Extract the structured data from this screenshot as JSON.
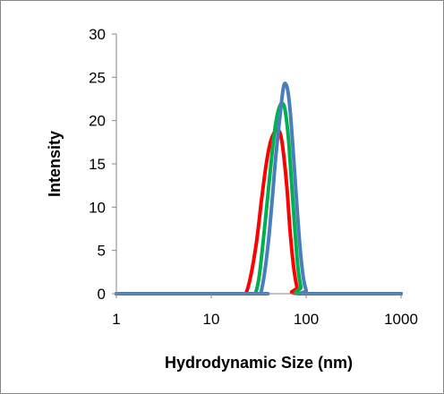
{
  "chart_data": {
    "type": "line",
    "title": "",
    "xlabel": "Hydrodynamic Size (nm)",
    "ylabel": "Intensity",
    "xscale": "log",
    "xlim": [
      1,
      1000
    ],
    "ylim": [
      0,
      30
    ],
    "xticks": [
      1,
      10,
      100,
      1000
    ],
    "xtick_labels": [
      "1",
      "10",
      "100",
      "1000"
    ],
    "yticks": [
      0,
      5,
      10,
      15,
      20,
      25,
      30
    ],
    "ytick_labels": [
      "0",
      "5",
      "10",
      "15",
      "20",
      "25",
      "30"
    ],
    "grid": false,
    "legend": "none",
    "series": [
      {
        "color": "#ff0000",
        "points": [
          [
            1,
            0
          ],
          [
            20,
            0
          ],
          [
            23,
            0
          ],
          [
            26,
            2
          ],
          [
            30,
            6
          ],
          [
            34,
            11
          ],
          [
            38,
            15
          ],
          [
            42,
            17.5
          ],
          [
            46,
            18.6
          ],
          [
            50,
            19
          ],
          [
            54,
            18.3
          ],
          [
            58,
            16
          ],
          [
            63,
            12
          ],
          [
            68,
            7
          ],
          [
            74,
            3
          ],
          [
            80,
            0.8
          ],
          [
            86,
            0
          ],
          [
            1000,
            0
          ]
        ]
      },
      {
        "color": "#00b050",
        "points": [
          [
            1,
            0
          ],
          [
            26,
            0
          ],
          [
            29,
            0
          ],
          [
            32,
            2
          ],
          [
            36,
            7
          ],
          [
            40,
            12
          ],
          [
            44,
            16.5
          ],
          [
            48,
            19.8
          ],
          [
            52,
            21.5
          ],
          [
            56,
            22
          ],
          [
            60,
            21.2
          ],
          [
            65,
            18
          ],
          [
            70,
            13
          ],
          [
            76,
            7.5
          ],
          [
            82,
            3
          ],
          [
            88,
            0.8
          ],
          [
            94,
            0
          ],
          [
            1000,
            0
          ]
        ]
      },
      {
        "color": "#4a7ebb",
        "points": [
          [
            1,
            0
          ],
          [
            30,
            0
          ],
          [
            33,
            0
          ],
          [
            36,
            2
          ],
          [
            40,
            6
          ],
          [
            44,
            11
          ],
          [
            48,
            16
          ],
          [
            53,
            20.5
          ],
          [
            57,
            23.5
          ],
          [
            60,
            24.3
          ],
          [
            64,
            23.5
          ],
          [
            68,
            21
          ],
          [
            73,
            16.5
          ],
          [
            79,
            11
          ],
          [
            86,
            5.5
          ],
          [
            93,
            2
          ],
          [
            100,
            0.4
          ],
          [
            106,
            0
          ],
          [
            1000,
            0
          ]
        ]
      }
    ]
  }
}
